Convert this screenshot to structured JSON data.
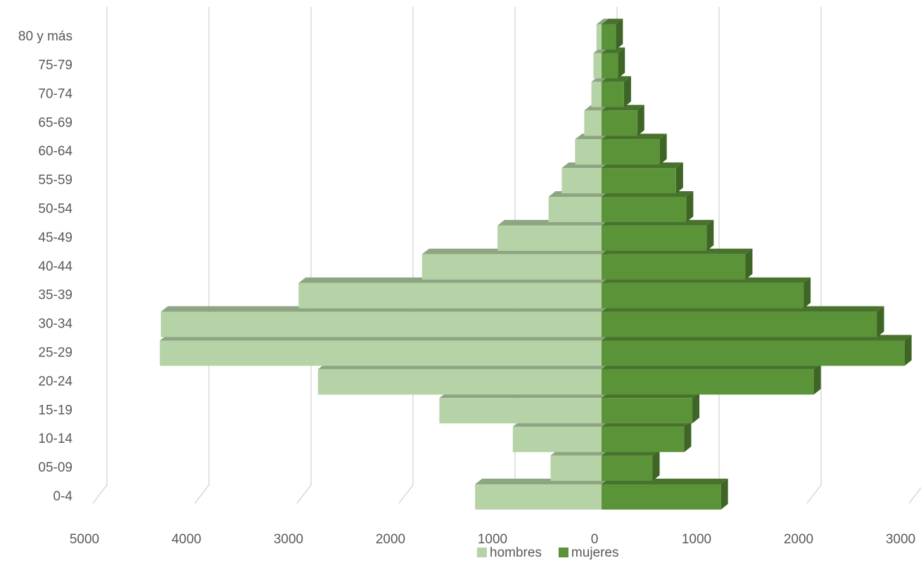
{
  "chart_data": {
    "type": "bar",
    "orientation": "horizontal",
    "stacked": false,
    "grid": true,
    "legend": "bottom",
    "categories": [
      "0-4",
      "05-09",
      "10-14",
      "15-19",
      "20-24",
      "25-29",
      "30-34",
      "35-39",
      "40-44",
      "45-49",
      "50-54",
      "55-59",
      "60-64",
      "65-69",
      "70-74",
      "75-79",
      "80 y más"
    ],
    "series": [
      {
        "name": "hombres",
        "color": "#b5d3a7",
        "values": [
          -1240,
          -500,
          -870,
          -1590,
          -2780,
          -4330,
          -4320,
          -2970,
          -1760,
          -1020,
          -520,
          -390,
          -260,
          -170,
          -100,
          -80,
          -50
        ]
      },
      {
        "name": "mujeres",
        "color": "#5b9338",
        "values": [
          1170,
          500,
          810,
          890,
          2080,
          2970,
          2700,
          1980,
          1410,
          1030,
          830,
          730,
          570,
          350,
          220,
          160,
          140
        ]
      }
    ],
    "xlim": [
      -5000,
      3000
    ],
    "xticks": [
      {
        "value": -5000,
        "label": "5000"
      },
      {
        "value": -4000,
        "label": "4000"
      },
      {
        "value": -3000,
        "label": "3000"
      },
      {
        "value": -2000,
        "label": "2000"
      },
      {
        "value": -1000,
        "label": "1000"
      },
      0,
      1000,
      2000,
      3000
    ]
  }
}
